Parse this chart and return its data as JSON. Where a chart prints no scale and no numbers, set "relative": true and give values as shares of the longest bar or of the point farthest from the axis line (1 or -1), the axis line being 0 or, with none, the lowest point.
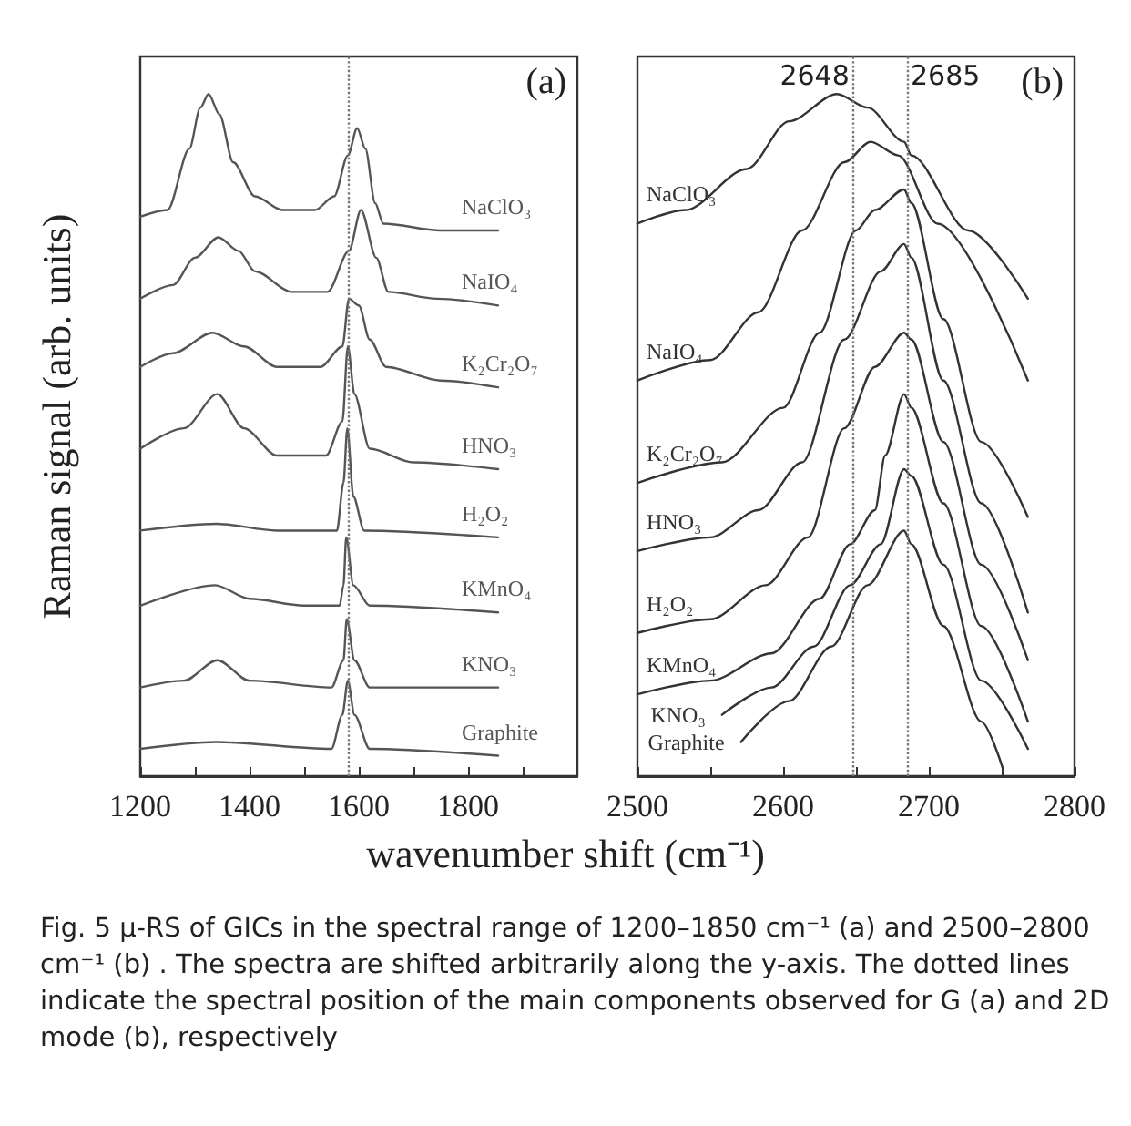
{
  "chart_data": [
    {
      "type": "line",
      "relative": true,
      "ylabel": "Raman signal (arb. units)",
      "xlabel": "wavenumber shift (cm⁻¹)",
      "xlim": [
        1200,
        2000
      ],
      "xticks": [
        1200,
        {
          "value": 1300,
          "label": null
        },
        1400,
        {
          "value": 1500,
          "label": null
        },
        1600,
        {
          "value": 1700,
          "label": null
        },
        1800,
        {
          "value": 1900,
          "label": null
        }
      ],
      "grid": false,
      "legend": false,
      "marker": "none",
      "line_style": "solid",
      "annotations": [
        "(a)",
        "Fig. 5 μ-RS of GICs in the spectral range of 1200–1850 cm⁻¹ (a) and 2500–2800 cm⁻¹ (b) . The spectra are shifted arbitrarily along the y-axis. The dotted lines indicate the spectral position of the main components observed for G (a) and 2D mode (b), respectively"
      ],
      "ref_lines": [
        {
          "axis": "x",
          "value": 1580,
          "line_style": "dotted",
          "color": "#777777"
        }
      ],
      "series": [
        {
          "name": "NaClO₃",
          "color": "#555555",
          "x": [
            1200,
            1250,
            1290,
            1310,
            1325,
            1345,
            1370,
            1410,
            1460,
            1520,
            1555,
            1580,
            1597,
            1612,
            1630,
            1645,
            1750,
            1855
          ],
          "values": [
            0.82,
            0.83,
            0.92,
            0.98,
            1.0,
            0.97,
            0.9,
            0.85,
            0.83,
            0.83,
            0.85,
            0.91,
            0.95,
            0.92,
            0.84,
            0.81,
            0.8,
            0.8
          ]
        },
        {
          "name": "NaIO₄",
          "color": "#555555",
          "x": [
            1200,
            1260,
            1300,
            1343,
            1380,
            1410,
            1477,
            1543,
            1582,
            1604,
            1632,
            1654,
            1743,
            1855
          ],
          "values": [
            0.7,
            0.72,
            0.76,
            0.79,
            0.77,
            0.74,
            0.71,
            0.71,
            0.77,
            0.83,
            0.76,
            0.71,
            0.7,
            0.69
          ]
        },
        {
          "name": "K₂Cr₂O₇",
          "color": "#555555",
          "x": [
            1200,
            1260,
            1332,
            1390,
            1450,
            1530,
            1570,
            1582,
            1600,
            1620,
            1650,
            1750,
            1855
          ],
          "values": [
            0.6,
            0.62,
            0.65,
            0.63,
            0.6,
            0.6,
            0.63,
            0.7,
            0.69,
            0.64,
            0.6,
            0.58,
            0.57
          ]
        },
        {
          "name": "HNO₃",
          "color": "#555555",
          "x": [
            1200,
            1280,
            1341,
            1390,
            1450,
            1540,
            1570,
            1580,
            1592,
            1620,
            1700,
            1855
          ],
          "values": [
            0.48,
            0.51,
            0.56,
            0.51,
            0.47,
            0.47,
            0.52,
            0.63,
            0.56,
            0.48,
            0.46,
            0.45
          ]
        },
        {
          "name": "H₂O₂",
          "color": "#555555",
          "x": [
            1200,
            1340,
            1450,
            1560,
            1572,
            1579,
            1590,
            1610,
            1855
          ],
          "values": [
            0.36,
            0.37,
            0.36,
            0.36,
            0.43,
            0.51,
            0.41,
            0.36,
            0.35
          ]
        },
        {
          "name": "KMnO₄",
          "color": "#555555",
          "x": [
            1200,
            1337,
            1400,
            1500,
            1565,
            1572,
            1577,
            1590,
            1620,
            1855
          ],
          "values": [
            0.25,
            0.28,
            0.26,
            0.25,
            0.25,
            0.28,
            0.35,
            0.28,
            0.25,
            0.24
          ]
        },
        {
          "name": "KNO₃",
          "color": "#555555",
          "x": [
            1200,
            1280,
            1341,
            1400,
            1550,
            1572,
            1578,
            1592,
            1620,
            1855
          ],
          "values": [
            0.13,
            0.14,
            0.17,
            0.14,
            0.13,
            0.17,
            0.23,
            0.17,
            0.13,
            0.13
          ]
        },
        {
          "name": "Graphite",
          "color": "#555555",
          "x": [
            1200,
            1340,
            1550,
            1570,
            1580,
            1592,
            1620,
            1855
          ],
          "values": [
            0.04,
            0.05,
            0.04,
            0.09,
            0.14,
            0.09,
            0.04,
            0.03
          ]
        }
      ]
    },
    {
      "type": "line",
      "relative": true,
      "xlim": [
        2500,
        2800
      ],
      "xticks": [
        2500,
        {
          "value": 2550,
          "label": null
        },
        2600,
        {
          "value": 2650,
          "label": null
        },
        2700,
        {
          "value": 2750,
          "label": null
        },
        2800
      ],
      "grid": false,
      "legend": false,
      "marker": "none",
      "line_style": "solid",
      "annotations": [
        "(b)"
      ],
      "ref_lines": [
        {
          "axis": "x",
          "value": 2648,
          "label": "2648",
          "line_style": "dotted",
          "color": "#777777"
        },
        {
          "axis": "x",
          "value": 2685,
          "label": "2685",
          "line_style": "dotted",
          "color": "#777777"
        }
      ],
      "series": [
        {
          "name": "NaClO₃",
          "color": "#333333",
          "x": [
            2500,
            2533,
            2575,
            2604,
            2637,
            2658,
            2683,
            2688,
            2727,
            2768
          ],
          "values": [
            0.81,
            0.83,
            0.89,
            0.96,
            1.0,
            0.98,
            0.93,
            0.91,
            0.8,
            0.7
          ]
        },
        {
          "name": "NaIO₄",
          "color": "#333333",
          "x": [
            2500,
            2550,
            2583,
            2613,
            2642,
            2660,
            2679,
            2706,
            2768
          ],
          "values": [
            0.58,
            0.61,
            0.68,
            0.8,
            0.9,
            0.93,
            0.91,
            0.81,
            0.58
          ]
        },
        {
          "name": "K₂Cr₂O₇",
          "color": "#333333",
          "x": [
            2500,
            2558,
            2600,
            2625,
            2650,
            2663,
            2683,
            2688,
            2710,
            2736,
            2768
          ],
          "values": [
            0.43,
            0.46,
            0.54,
            0.65,
            0.8,
            0.83,
            0.86,
            0.84,
            0.67,
            0.49,
            0.38
          ]
        },
        {
          "name": "HNO₃",
          "color": "#333333",
          "x": [
            2500,
            2550,
            2583,
            2613,
            2642,
            2667,
            2683,
            2688,
            2710,
            2736,
            2768
          ],
          "values": [
            0.33,
            0.35,
            0.39,
            0.46,
            0.64,
            0.74,
            0.78,
            0.76,
            0.58,
            0.4,
            0.24
          ]
        },
        {
          "name": "H₂O₂",
          "color": "#333333",
          "x": [
            2500,
            2550,
            2588,
            2617,
            2642,
            2663,
            2683,
            2688,
            2710,
            2736,
            2768
          ],
          "values": [
            0.21,
            0.23,
            0.28,
            0.35,
            0.51,
            0.6,
            0.65,
            0.64,
            0.49,
            0.31,
            0.17
          ]
        },
        {
          "name": "KMnO₄",
          "color": "#333333",
          "x": [
            2500,
            2550,
            2592,
            2625,
            2646,
            2663,
            2670,
            2683,
            2688,
            2710,
            2736,
            2768
          ],
          "values": [
            0.12,
            0.14,
            0.18,
            0.26,
            0.34,
            0.39,
            0.47,
            0.56,
            0.54,
            0.4,
            0.22,
            0.08
          ]
        },
        {
          "name": "KNO₃",
          "color": "#333333",
          "x": [
            2558,
            2592,
            2621,
            2646,
            2667,
            2683,
            2688,
            2710,
            2736,
            2768
          ],
          "values": [
            0.09,
            0.13,
            0.19,
            0.28,
            0.34,
            0.45,
            0.44,
            0.31,
            0.14,
            0.04
          ]
        },
        {
          "name": "Graphite",
          "color": "#333333",
          "x": [
            2571,
            2604,
            2633,
            2658,
            2683,
            2688,
            2710,
            2736,
            2751
          ],
          "values": [
            0.05,
            0.11,
            0.19,
            0.28,
            0.36,
            0.34,
            0.22,
            0.08,
            0.01
          ]
        }
      ]
    }
  ]
}
